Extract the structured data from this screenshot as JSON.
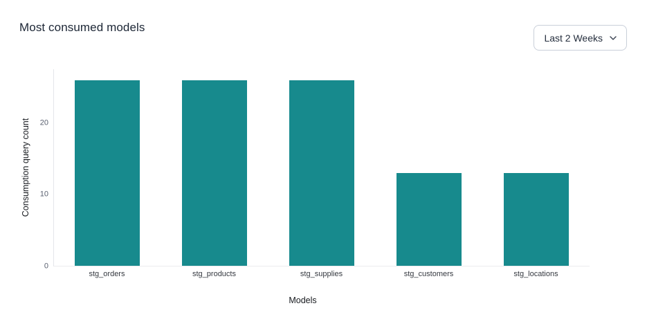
{
  "header": {
    "title": "Most consumed models"
  },
  "filter": {
    "label": "Last 2 Weeks"
  },
  "chart_data": {
    "type": "bar",
    "title": "Most consumed models",
    "categories": [
      "stg_orders",
      "stg_products",
      "stg_supplies",
      "stg_customers",
      "stg_locations"
    ],
    "values": [
      26,
      26,
      26,
      13,
      13
    ],
    "xlabel": "Models",
    "ylabel": "Consumption query count",
    "ylim": [
      0,
      27.5
    ],
    "yticks": [
      0,
      10,
      20
    ],
    "grid": false,
    "legend": false,
    "bar_color": "#178a8d"
  },
  "colors": {
    "bar": "#178a8d",
    "axis_line": "#e4e6ea",
    "title_text": "#1c2635",
    "tick_text": "#59606f",
    "button_border": "#c9cfd9"
  }
}
